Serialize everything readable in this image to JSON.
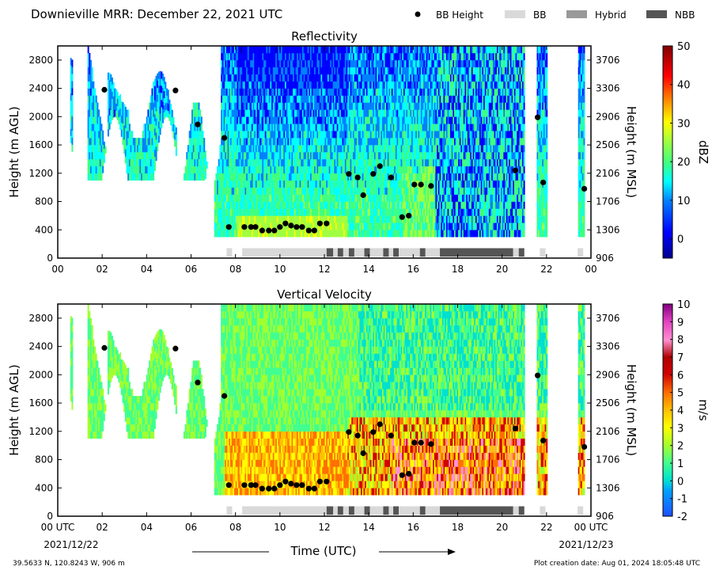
{
  "header": {
    "title": "Downieville MRR:  December 22, 2021 UTC",
    "legend": [
      {
        "label": "BB Height",
        "marker": "dot",
        "color": "#000000"
      },
      {
        "label": "BB",
        "marker": "rect",
        "color": "#d9d9d9"
      },
      {
        "label": "Hybrid",
        "marker": "rect",
        "color": "#999999"
      },
      {
        "label": "NBB",
        "marker": "rect",
        "color": "#555555"
      }
    ]
  },
  "footer": {
    "coords": "39.5633 N, 120.8243 W, 906 m",
    "created": "Plot creation date: Aug 01, 2024 18:05:48 UTC",
    "xlabel": "Time (UTC)",
    "start_date": "2021/12/22",
    "end_date": "2021/12/23"
  },
  "chart_data": [
    {
      "type": "heatmap",
      "title": "Reflectivity",
      "ylabel": "Height (m AGL)",
      "ylabel_right": "Height (m MSL)",
      "xlim": [
        0,
        24
      ],
      "ylim": [
        0,
        3000
      ],
      "yticks": [
        0,
        400,
        800,
        1200,
        1600,
        2000,
        2400,
        2800
      ],
      "yticks_right": [
        906,
        1306,
        1706,
        2106,
        2506,
        2906,
        3306,
        3706
      ],
      "xtick_labels": [
        "00",
        "02",
        "04",
        "06",
        "08",
        "10",
        "12",
        "14",
        "16",
        "18",
        "20",
        "22",
        "00"
      ],
      "colorbar": {
        "label": "dBZ",
        "min": -5,
        "max": 50,
        "ticks": [
          0,
          10,
          20,
          30,
          40,
          50
        ]
      }
    },
    {
      "type": "heatmap",
      "title": "Vertical Velocity",
      "ylabel": "Height (m AGL)",
      "ylabel_right": "Height (m MSL)",
      "xlim": [
        0,
        24
      ],
      "ylim": [
        0,
        3000
      ],
      "yticks": [
        0,
        400,
        800,
        1200,
        1600,
        2000,
        2400,
        2800
      ],
      "yticks_right": [
        906,
        1306,
        1706,
        2106,
        2506,
        2906,
        3306,
        3706
      ],
      "xtick_labels": [
        "00 UTC",
        "02",
        "04",
        "06",
        "08",
        "10",
        "12",
        "14",
        "16",
        "18",
        "20",
        "22",
        "00 UTC"
      ],
      "colorbar": {
        "label": "m/s",
        "min": -2,
        "max": 10,
        "ticks": [
          -2,
          -1,
          0,
          1,
          2,
          3,
          4,
          5,
          6,
          7,
          8,
          9,
          10
        ]
      }
    }
  ],
  "bb_heights": [
    [
      2.1,
      2380
    ],
    [
      5.3,
      2370
    ],
    [
      6.3,
      1890
    ],
    [
      7.5,
      1700
    ],
    [
      7.7,
      440
    ],
    [
      8.4,
      440
    ],
    [
      8.7,
      440
    ],
    [
      8.9,
      440
    ],
    [
      9.2,
      390
    ],
    [
      9.5,
      390
    ],
    [
      9.75,
      390
    ],
    [
      10.0,
      440
    ],
    [
      10.25,
      490
    ],
    [
      10.5,
      460
    ],
    [
      10.75,
      440
    ],
    [
      11.0,
      440
    ],
    [
      11.3,
      390
    ],
    [
      11.55,
      390
    ],
    [
      11.8,
      490
    ],
    [
      12.1,
      490
    ],
    [
      13.1,
      1190
    ],
    [
      13.5,
      1140
    ],
    [
      13.75,
      890
    ],
    [
      14.2,
      1190
    ],
    [
      14.5,
      1300
    ],
    [
      15.0,
      1140
    ],
    [
      15.5,
      580
    ],
    [
      15.8,
      600
    ],
    [
      16.05,
      1040
    ],
    [
      16.35,
      1040
    ],
    [
      16.8,
      1020
    ],
    [
      20.6,
      1240
    ],
    [
      21.6,
      1990
    ],
    [
      21.85,
      1070
    ],
    [
      23.7,
      980
    ]
  ],
  "bb_type_segments": [
    {
      "start": 7.6,
      "end": 7.85,
      "type": "BB"
    },
    {
      "start": 8.3,
      "end": 12.1,
      "type": "BB"
    },
    {
      "start": 12.1,
      "end": 12.4,
      "type": "NBB"
    },
    {
      "start": 12.4,
      "end": 12.6,
      "type": "BB"
    },
    {
      "start": 12.6,
      "end": 12.85,
      "type": "NBB"
    },
    {
      "start": 12.85,
      "end": 13.1,
      "type": "BB"
    },
    {
      "start": 13.1,
      "end": 13.35,
      "type": "NBB"
    },
    {
      "start": 13.35,
      "end": 13.8,
      "type": "BB"
    },
    {
      "start": 13.8,
      "end": 14.05,
      "type": "NBB"
    },
    {
      "start": 14.05,
      "end": 14.65,
      "type": "BB"
    },
    {
      "start": 14.65,
      "end": 14.9,
      "type": "NBB"
    },
    {
      "start": 14.9,
      "end": 15.1,
      "type": "BB"
    },
    {
      "start": 15.1,
      "end": 15.35,
      "type": "NBB"
    },
    {
      "start": 15.35,
      "end": 16.3,
      "type": "BB"
    },
    {
      "start": 16.3,
      "end": 16.55,
      "type": "NBB"
    },
    {
      "start": 16.55,
      "end": 17.2,
      "type": "BB"
    },
    {
      "start": 17.2,
      "end": 20.5,
      "type": "NBB"
    },
    {
      "start": 20.5,
      "end": 20.75,
      "type": "BB"
    },
    {
      "start": 20.75,
      "end": 21.0,
      "type": "NBB"
    },
    {
      "start": 21.7,
      "end": 21.95,
      "type": "BB"
    },
    {
      "start": 23.4,
      "end": 23.65,
      "type": "BB"
    }
  ]
}
